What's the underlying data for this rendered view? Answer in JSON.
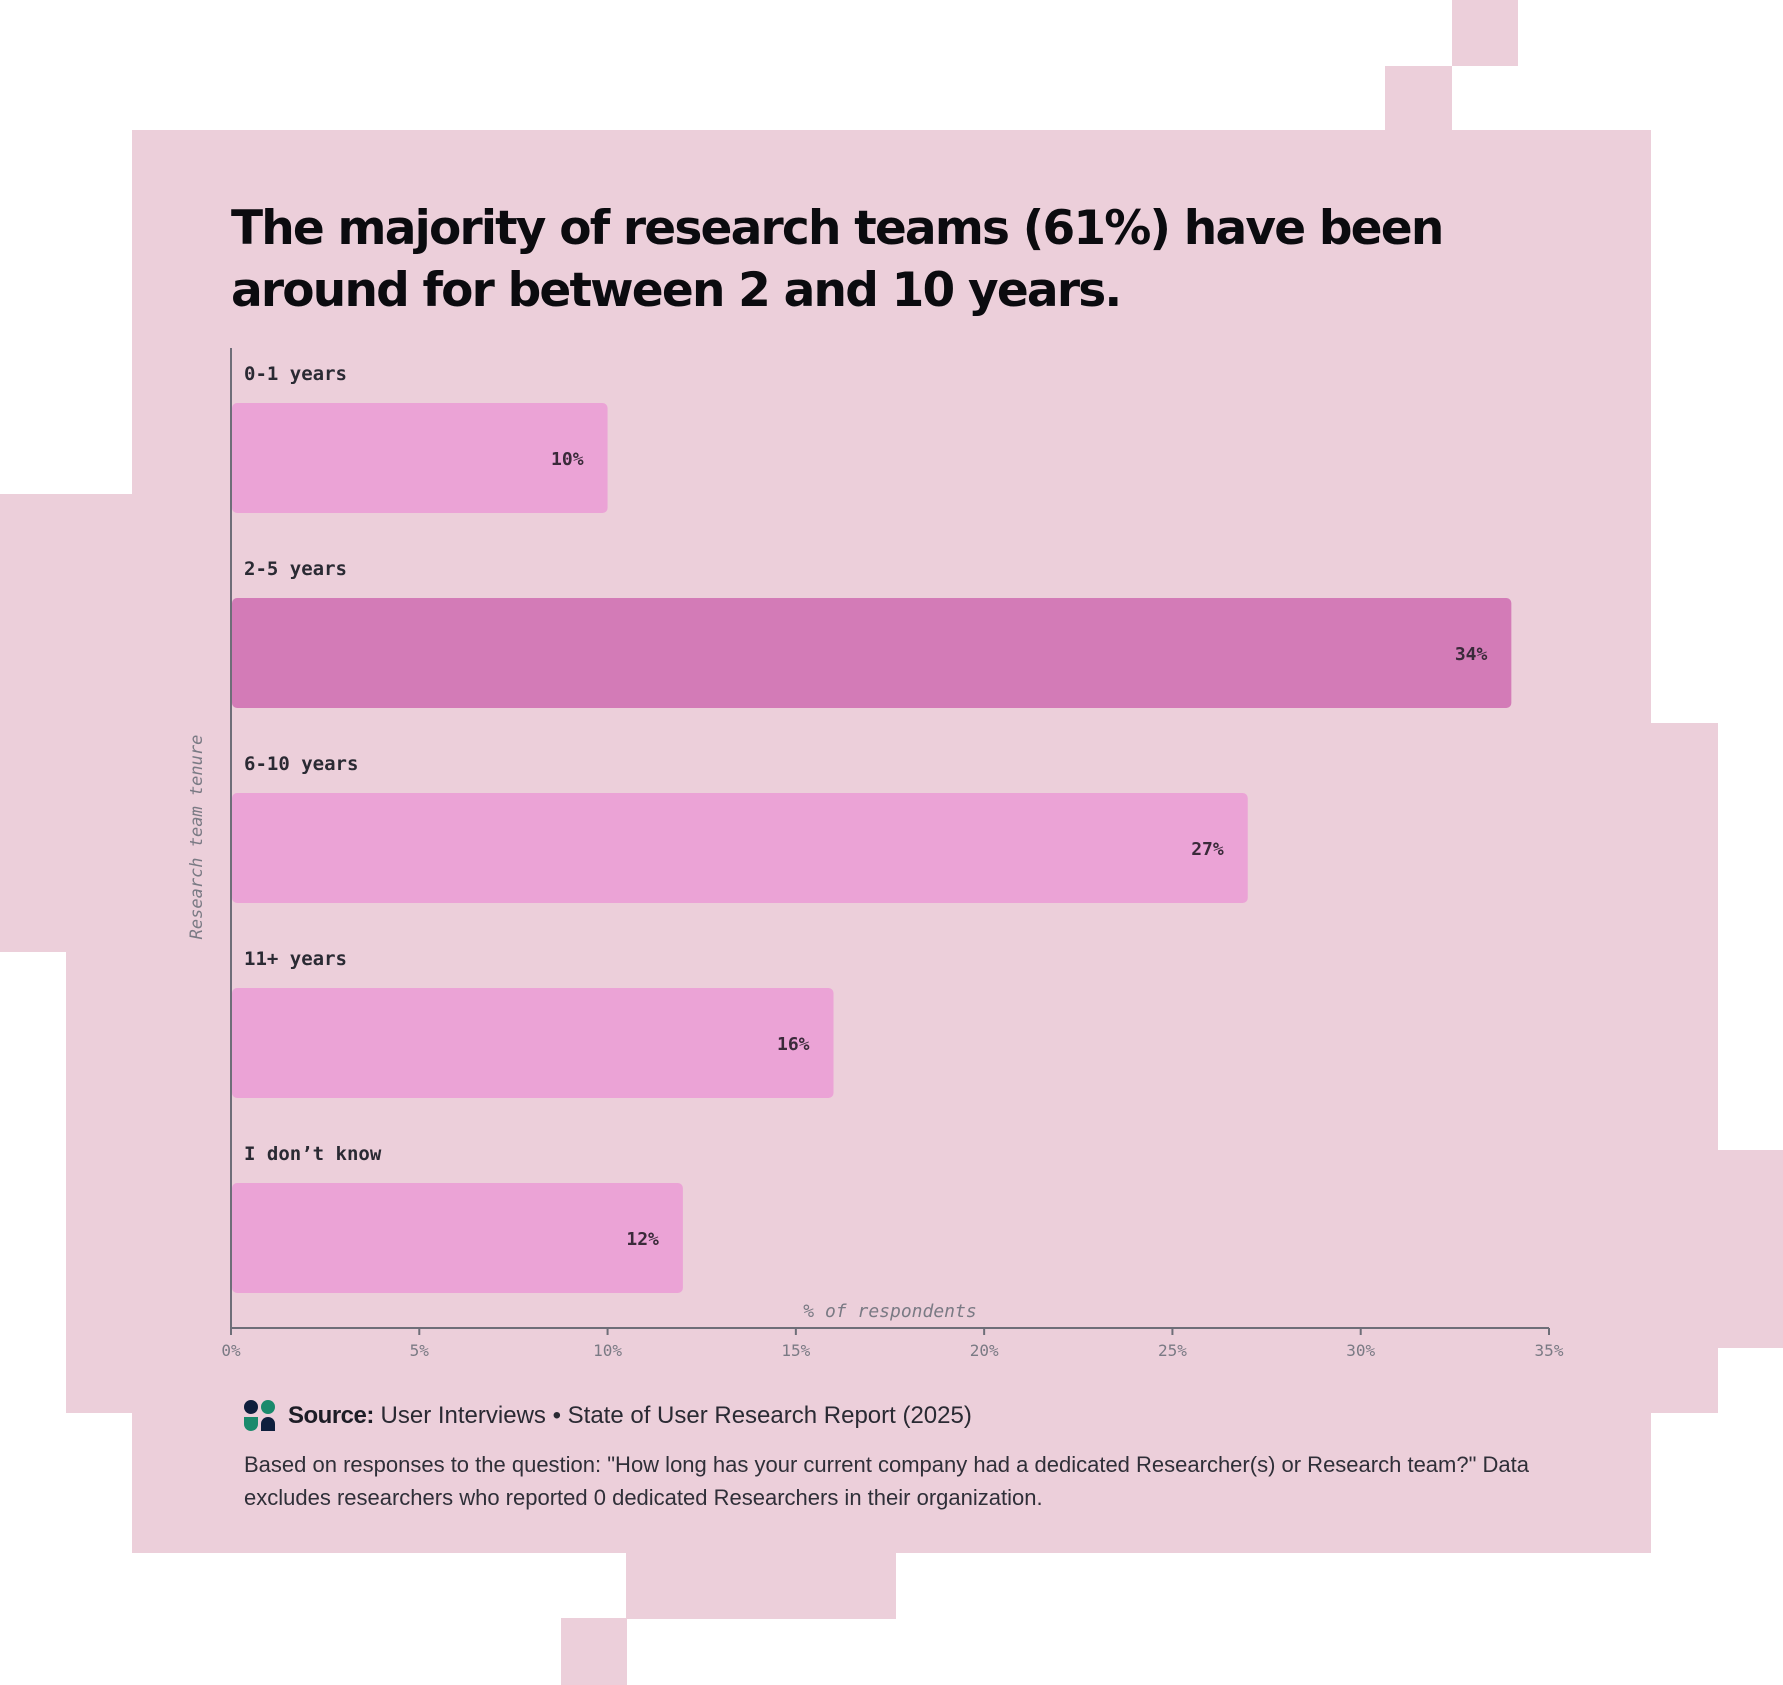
{
  "title": "The majority of research teams (61%) have been around for between 2 and 10 years.",
  "colors": {
    "background": "#eccfda",
    "bar": "#eba3d6",
    "highlight_bar": "#d37bb7",
    "text": "#0b0b0f"
  },
  "chart_data": {
    "type": "bar",
    "orientation": "horizontal",
    "categories": [
      "0-1 years",
      "2-5 years",
      "6-10 years",
      "11+ years",
      "I don’t know"
    ],
    "values": [
      10,
      34,
      27,
      16,
      12
    ],
    "value_labels": [
      "10%",
      "34%",
      "27%",
      "16%",
      "12%"
    ],
    "highlight_index": 1,
    "xlabel": "% of respondents",
    "ylabel": "Research team tenure",
    "xlim": [
      0,
      35
    ],
    "xticks": [
      0,
      5,
      10,
      15,
      20,
      25,
      30,
      35
    ],
    "xtick_labels": [
      "0%",
      "5%",
      "10%",
      "15%",
      "20%",
      "25%",
      "30%",
      "35%"
    ],
    "grid": false
  },
  "source": {
    "label": "Source:",
    "text": "User Interviews • State of User Research Report (2025)",
    "logo_icon": "user-interviews-logo-icon"
  },
  "note": "Based on responses to the question: \"How long has your current company had a dedicated Researcher(s) or Research team?\" Data excludes researchers who reported 0 dedicated Researchers in their organization."
}
